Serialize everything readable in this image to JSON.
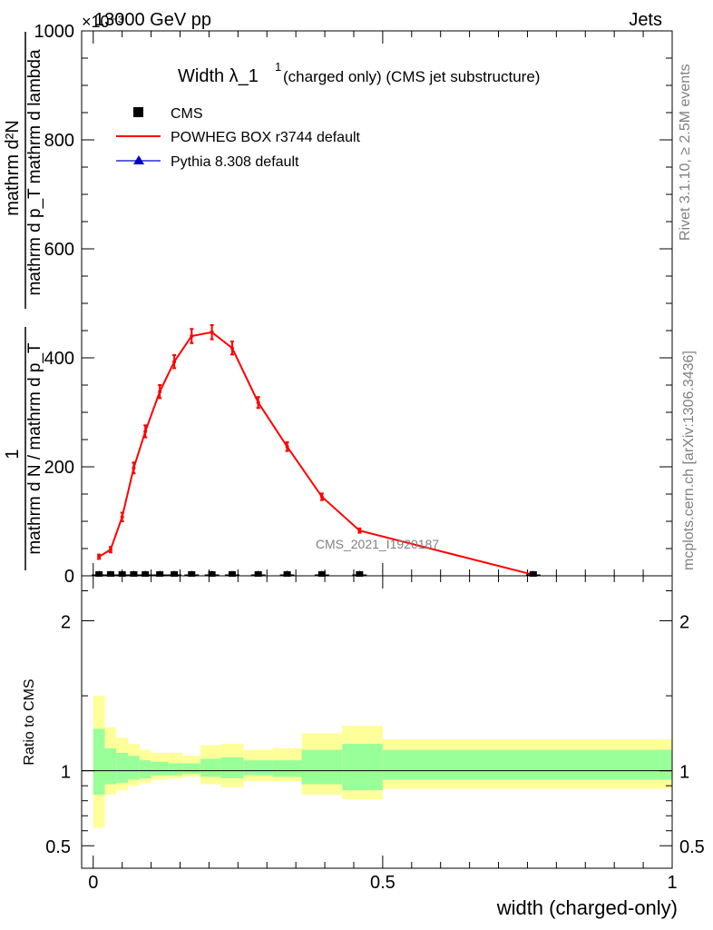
{
  "header": {
    "left": "13000 GeV pp",
    "right": "Jets",
    "exponent": "×10⁻³"
  },
  "side_text": {
    "upper": "Rivet 3.1.10, ≥ 2.5M events",
    "lower": "mcplots.cern.ch [arXiv:1306.3436]"
  },
  "watermark": "CMS_2021_I1920187",
  "chart_data": [
    {
      "type": "line",
      "title": "Width λ_1¹ (charged only) (CMS jet substructure)",
      "title_main": "Width λ_1",
      "title_sup": "1",
      "title_rest": "(charged only) (CMS jet substructure)",
      "ylabel": "1 / mathrm d N / mathrm d p_T mathrm d p_T mathrm d lambda mathrm d N",
      "ylabel_parts": {
        "numerator": "mathrm d²N",
        "denominator": "mathrm d p_T mathrm d lambda",
        "frac_left_num": "1",
        "frac_left_den": "mathrm d N / mathrm d p_T"
      },
      "xlim": [
        0,
        1
      ],
      "ylim": [
        0,
        1000
      ],
      "yticks": [
        0,
        200,
        400,
        600,
        800,
        1000
      ],
      "ytick_labels": [
        "0",
        "200",
        "400",
        "600",
        "800",
        "1000"
      ],
      "legend_position": "top-left",
      "series": [
        {
          "name": "CMS",
          "color": "#000000",
          "marker": "square",
          "x": [
            0.01,
            0.03,
            0.05,
            0.07,
            0.09,
            0.115,
            0.14,
            0.17,
            0.205,
            0.24,
            0.285,
            0.335,
            0.395,
            0.46,
            0.76
          ],
          "y": [
            0,
            0,
            0,
            0,
            0,
            0,
            0,
            0,
            0,
            0,
            0,
            0,
            0,
            0,
            0
          ]
        },
        {
          "name": "POWHEG BOX r3744 default",
          "color": "#ff0000",
          "marker": "line",
          "x": [
            0.01,
            0.03,
            0.05,
            0.07,
            0.09,
            0.115,
            0.14,
            0.17,
            0.205,
            0.24,
            0.285,
            0.335,
            0.395,
            0.46,
            0.76
          ],
          "y": [
            35,
            48,
            108,
            198,
            265,
            338,
            393,
            440,
            447,
            418,
            318,
            237,
            145,
            83,
            2
          ],
          "err": [
            4,
            5,
            8,
            10,
            11,
            12,
            12,
            13,
            13,
            12,
            10,
            8,
            6,
            4,
            1
          ]
        },
        {
          "name": "Pythia 8.308 default",
          "color": "#0000cc",
          "marker": "triangle",
          "x": [
            0.01,
            0.03,
            0.05,
            0.07,
            0.09,
            0.115,
            0.14,
            0.17,
            0.205,
            0.24,
            0.285,
            0.335,
            0.395,
            0.46,
            0.76
          ],
          "y": [
            0,
            0,
            0,
            0,
            0,
            0,
            0,
            0,
            0,
            0,
            0,
            0,
            0,
            0,
            0
          ]
        }
      ]
    },
    {
      "type": "area",
      "ylabel": "Ratio to CMS",
      "xlabel": "width (charged-only)",
      "xlim": [
        -0.02,
        1.0
      ],
      "ylim": [
        0.35,
        2.3
      ],
      "xticks": [
        0,
        0.5,
        1
      ],
      "xtick_labels": [
        "0",
        "0.5",
        "1"
      ],
      "yticks": [
        0.5,
        1,
        2
      ],
      "ytick_labels": [
        "0.5",
        "1",
        "2"
      ],
      "reference_line": 1,
      "bins": [
        {
          "x0": 0.0,
          "x1": 0.02,
          "y_lo": 0.62,
          "y_hi": 1.5,
          "g_lo": 0.84,
          "g_hi": 1.28
        },
        {
          "x0": 0.02,
          "x1": 0.04,
          "y_lo": 0.84,
          "y_hi": 1.29,
          "g_lo": 0.91,
          "g_hi": 1.15
        },
        {
          "x0": 0.04,
          "x1": 0.06,
          "y_lo": 0.87,
          "y_hi": 1.22,
          "g_lo": 0.92,
          "g_hi": 1.12
        },
        {
          "x0": 0.06,
          "x1": 0.08,
          "y_lo": 0.9,
          "y_hi": 1.18,
          "g_lo": 0.94,
          "g_hi": 1.1
        },
        {
          "x0": 0.08,
          "x1": 0.1,
          "y_lo": 0.92,
          "y_hi": 1.14,
          "g_lo": 0.95,
          "g_hi": 1.07
        },
        {
          "x0": 0.1,
          "x1": 0.13,
          "y_lo": 0.94,
          "y_hi": 1.12,
          "g_lo": 0.97,
          "g_hi": 1.06
        },
        {
          "x0": 0.13,
          "x1": 0.155,
          "y_lo": 0.95,
          "y_hi": 1.12,
          "g_lo": 0.97,
          "g_hi": 1.05
        },
        {
          "x0": 0.155,
          "x1": 0.185,
          "y_lo": 0.96,
          "y_hi": 1.1,
          "g_lo": 0.98,
          "g_hi": 1.05
        },
        {
          "x0": 0.185,
          "x1": 0.22,
          "y_lo": 0.91,
          "y_hi": 1.17,
          "g_lo": 0.96,
          "g_hi": 1.08
        },
        {
          "x0": 0.22,
          "x1": 0.26,
          "y_lo": 0.89,
          "y_hi": 1.18,
          "g_lo": 0.95,
          "g_hi": 1.09
        },
        {
          "x0": 0.26,
          "x1": 0.31,
          "y_lo": 0.93,
          "y_hi": 1.14,
          "g_lo": 0.97,
          "g_hi": 1.07
        },
        {
          "x0": 0.31,
          "x1": 0.36,
          "y_lo": 0.93,
          "y_hi": 1.15,
          "g_lo": 0.96,
          "g_hi": 1.07
        },
        {
          "x0": 0.36,
          "x1": 0.43,
          "y_lo": 0.84,
          "y_hi": 1.25,
          "g_lo": 0.91,
          "g_hi": 1.14
        },
        {
          "x0": 0.43,
          "x1": 0.5,
          "y_lo": 0.81,
          "y_hi": 1.3,
          "g_lo": 0.87,
          "g_hi": 1.18
        },
        {
          "x0": 0.5,
          "x1": 1.0,
          "y_lo": 0.88,
          "y_hi": 1.21,
          "g_lo": 0.94,
          "g_hi": 1.14
        }
      ],
      "band_colors": {
        "outer": "#ffff99",
        "inner": "#99ff99"
      }
    }
  ]
}
